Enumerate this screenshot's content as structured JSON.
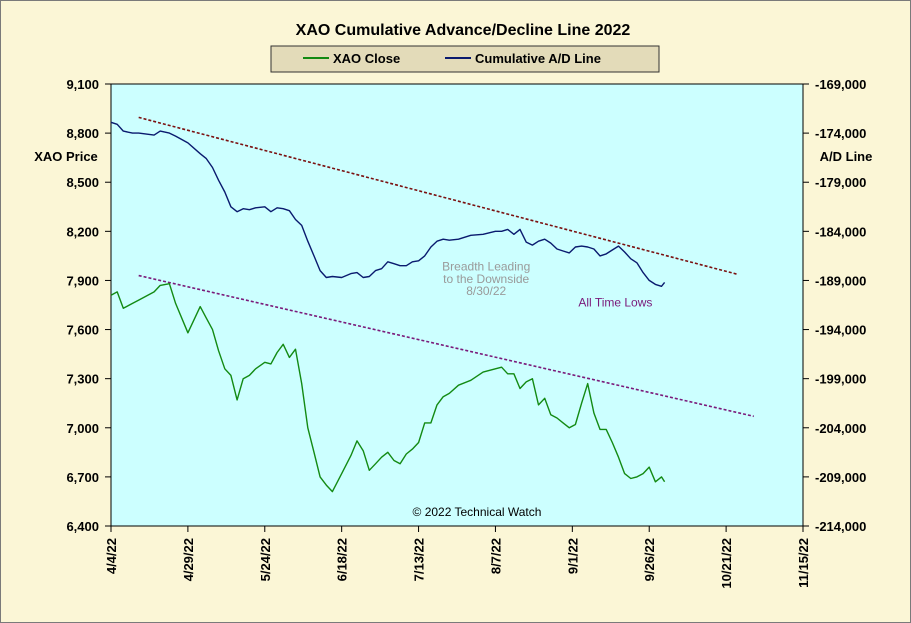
{
  "chart_data": {
    "type": "line",
    "title": "XAO Cumulative Advance/Decline Line 2022",
    "ylabel_left": "XAO Price",
    "ylabel_right": "A/D Line",
    "x_ticks": [
      "4/4/22",
      "4/29/22",
      "5/24/22",
      "6/18/22",
      "7/13/22",
      "8/7/22",
      "9/1/22",
      "9/26/22",
      "10/21/22",
      "11/15/22"
    ],
    "xlim": [
      "2022-04-04",
      "2022-11-15"
    ],
    "ylim_left": [
      6400,
      9100
    ],
    "ylim_right": [
      -214000,
      -169000
    ],
    "y_ticks_left": [
      "9,100",
      "8,800",
      "8,500",
      "8,200",
      "7,900",
      "7,600",
      "7,300",
      "7,000",
      "6,700",
      "6,400"
    ],
    "y_ticks_right": [
      "-169,000",
      "-174,000",
      "-179,000",
      "-184,000",
      "-189,000",
      "-194,000",
      "-199,000",
      "-204,000",
      "-209,000",
      "-214,000"
    ],
    "series": [
      {
        "name": "XAO Close",
        "axis": "left",
        "color": "#138a13",
        "x": [
          "2022-04-04",
          "2022-04-06",
          "2022-04-08",
          "2022-04-11",
          "2022-04-13",
          "2022-04-18",
          "2022-04-20",
          "2022-04-23",
          "2022-04-25",
          "2022-04-29",
          "2022-05-03",
          "2022-05-05",
          "2022-05-07",
          "2022-05-09",
          "2022-05-11",
          "2022-05-13",
          "2022-05-15",
          "2022-05-17",
          "2022-05-19",
          "2022-05-21",
          "2022-05-24",
          "2022-05-26",
          "2022-05-28",
          "2022-05-30",
          "2022-06-01",
          "2022-06-03",
          "2022-06-05",
          "2022-06-07",
          "2022-06-09",
          "2022-06-11",
          "2022-06-13",
          "2022-06-15",
          "2022-06-18",
          "2022-06-21",
          "2022-06-23",
          "2022-06-25",
          "2022-06-27",
          "2022-06-29",
          "2022-07-01",
          "2022-07-03",
          "2022-07-05",
          "2022-07-07",
          "2022-07-09",
          "2022-07-11",
          "2022-07-13",
          "2022-07-15",
          "2022-07-17",
          "2022-07-19",
          "2022-07-21",
          "2022-07-23",
          "2022-07-26",
          "2022-07-30",
          "2022-08-03",
          "2022-08-07",
          "2022-08-09",
          "2022-08-11",
          "2022-08-13",
          "2022-08-15",
          "2022-08-17",
          "2022-08-19",
          "2022-08-21",
          "2022-08-23",
          "2022-08-25",
          "2022-08-27",
          "2022-08-29",
          "2022-08-31",
          "2022-09-02",
          "2022-09-04",
          "2022-09-06",
          "2022-09-08",
          "2022-09-10",
          "2022-09-12",
          "2022-09-14",
          "2022-09-16",
          "2022-09-18",
          "2022-09-20",
          "2022-09-22",
          "2022-09-24",
          "2022-09-26",
          "2022-09-28",
          "2022-09-30",
          "2022-10-01"
        ],
        "values": [
          7810,
          7830,
          7730,
          7760,
          7780,
          7830,
          7870,
          7880,
          7760,
          7580,
          7740,
          7670,
          7600,
          7470,
          7360,
          7320,
          7170,
          7300,
          7320,
          7360,
          7400,
          7390,
          7460,
          7510,
          7430,
          7480,
          7270,
          7000,
          6850,
          6700,
          6650,
          6610,
          6720,
          6830,
          6920,
          6860,
          6740,
          6780,
          6820,
          6850,
          6800,
          6780,
          6840,
          6870,
          6910,
          7030,
          7030,
          7140,
          7190,
          7210,
          7260,
          7290,
          7340,
          7360,
          7370,
          7330,
          7330,
          7240,
          7280,
          7300,
          7140,
          7180,
          7080,
          7060,
          7030,
          7000,
          7020,
          7150,
          7270,
          7090,
          6990,
          6990,
          6910,
          6820,
          6720,
          6690,
          6700,
          6720,
          6760,
          6670,
          6700,
          6670
        ]
      },
      {
        "name": "Cumulative A/D Line",
        "axis": "right",
        "color": "#0a1a6e",
        "x": [
          "2022-04-04",
          "2022-04-06",
          "2022-04-08",
          "2022-04-11",
          "2022-04-13",
          "2022-04-18",
          "2022-04-20",
          "2022-04-23",
          "2022-04-25",
          "2022-04-29",
          "2022-05-03",
          "2022-05-05",
          "2022-05-07",
          "2022-05-09",
          "2022-05-11",
          "2022-05-13",
          "2022-05-15",
          "2022-05-17",
          "2022-05-19",
          "2022-05-21",
          "2022-05-24",
          "2022-05-26",
          "2022-05-28",
          "2022-05-30",
          "2022-06-01",
          "2022-06-03",
          "2022-06-05",
          "2022-06-07",
          "2022-06-09",
          "2022-06-11",
          "2022-06-13",
          "2022-06-15",
          "2022-06-18",
          "2022-06-21",
          "2022-06-23",
          "2022-06-25",
          "2022-06-27",
          "2022-06-29",
          "2022-07-01",
          "2022-07-03",
          "2022-07-05",
          "2022-07-07",
          "2022-07-09",
          "2022-07-11",
          "2022-07-13",
          "2022-07-15",
          "2022-07-17",
          "2022-07-19",
          "2022-07-21",
          "2022-07-23",
          "2022-07-26",
          "2022-07-30",
          "2022-08-03",
          "2022-08-07",
          "2022-08-09",
          "2022-08-11",
          "2022-08-13",
          "2022-08-15",
          "2022-08-17",
          "2022-08-19",
          "2022-08-21",
          "2022-08-23",
          "2022-08-25",
          "2022-08-27",
          "2022-08-29",
          "2022-08-31",
          "2022-09-02",
          "2022-09-04",
          "2022-09-06",
          "2022-09-08",
          "2022-09-10",
          "2022-09-12",
          "2022-09-14",
          "2022-09-16",
          "2022-09-18",
          "2022-09-20",
          "2022-09-22",
          "2022-09-24",
          "2022-09-26",
          "2022-09-28",
          "2022-09-30",
          "2022-10-01"
        ],
        "values": [
          -172900,
          -173100,
          -173800,
          -174000,
          -174000,
          -174200,
          -173800,
          -174000,
          -174300,
          -175000,
          -176100,
          -176600,
          -177500,
          -178800,
          -180000,
          -181500,
          -182000,
          -181700,
          -181800,
          -181600,
          -181500,
          -182000,
          -181600,
          -181700,
          -181900,
          -182800,
          -183400,
          -185000,
          -186500,
          -188000,
          -188700,
          -188600,
          -188700,
          -188300,
          -188200,
          -188700,
          -188600,
          -188000,
          -187800,
          -187100,
          -187300,
          -187500,
          -187500,
          -187100,
          -187000,
          -186500,
          -185600,
          -185000,
          -184800,
          -184900,
          -184800,
          -184400,
          -184300,
          -184000,
          -184000,
          -183800,
          -184300,
          -183800,
          -185100,
          -185400,
          -185000,
          -184800,
          -185200,
          -185800,
          -186000,
          -186200,
          -185600,
          -185500,
          -185600,
          -185800,
          -186500,
          -186300,
          -185900,
          -185500,
          -186100,
          -186800,
          -187200,
          -188200,
          -189000,
          -189400,
          -189600,
          -189200
        ]
      }
    ],
    "trendlines": [
      {
        "axis": "right",
        "start": [
          "2022-04-13",
          -172400
        ],
        "end": [
          "2022-10-25",
          -188400
        ],
        "color": "#7a1010"
      },
      {
        "axis": "left",
        "start": [
          "2022-04-13",
          7930
        ],
        "end": [
          "2022-10-30",
          7070
        ],
        "color": "#7a1a7a"
      }
    ],
    "annotations": [
      {
        "text": "Breadth Leading",
        "x": "2022-08-04",
        "y": 7960,
        "color": "#9a9a9a"
      },
      {
        "text": "to the Downside",
        "x": "2022-08-04",
        "y": 7885,
        "color": "#9a9a9a"
      },
      {
        "text": "8/30/22",
        "x": "2022-08-04",
        "y": 7810,
        "color": "#9a9a9a"
      },
      {
        "text": "All Time Lows",
        "x": "2022-09-15",
        "y": 7740,
        "color": "#7a1a7a"
      },
      {
        "text": "© 2022 Technical Watch",
        "x": "2022-08-01",
        "y": 6460,
        "color": "#000000"
      }
    ],
    "legend_position": "top-center",
    "grid": false,
    "plot_background": "#ccffff",
    "background": "#fbf6d6"
  }
}
